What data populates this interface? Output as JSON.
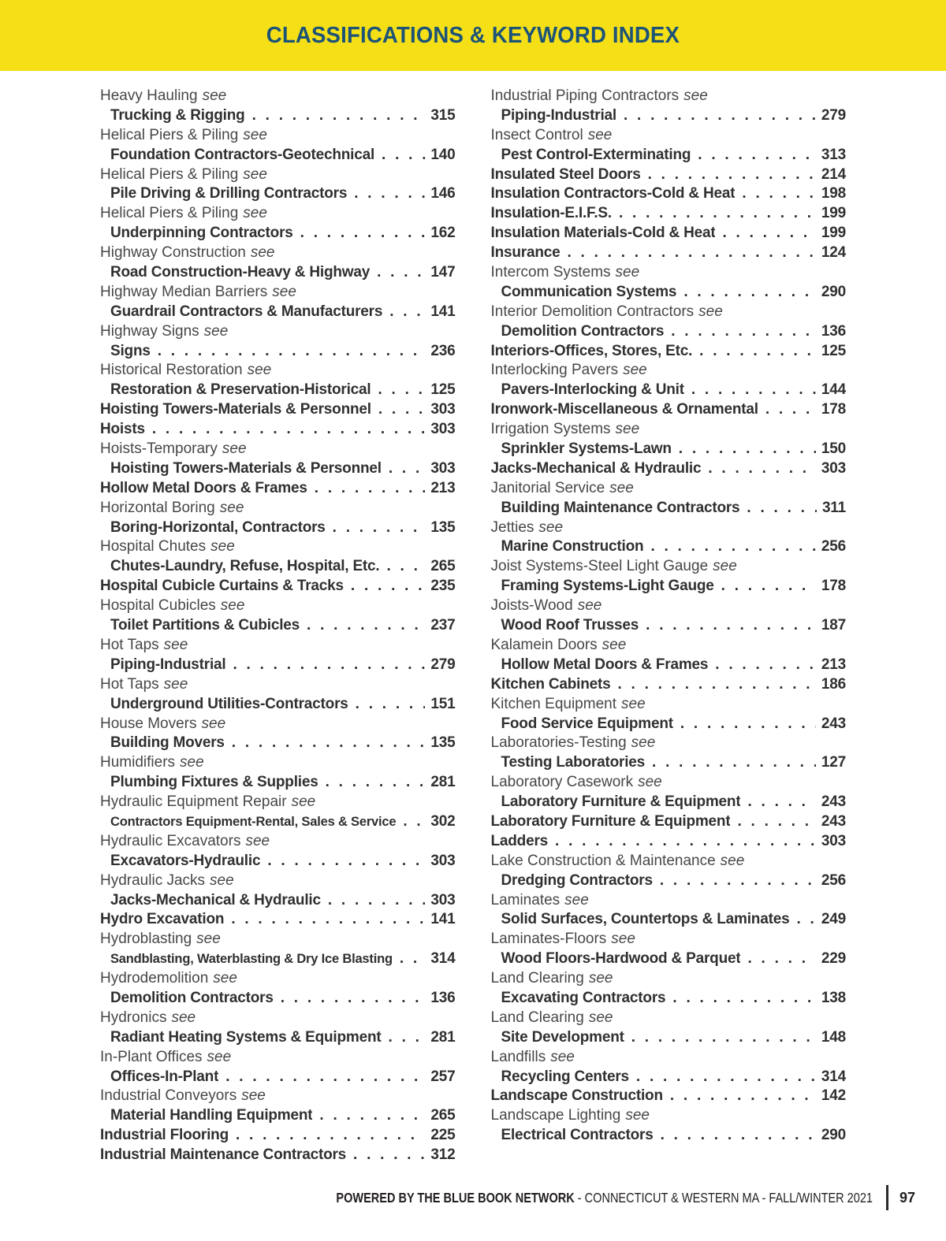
{
  "header": {
    "title": "CLASSIFICATIONS & KEYWORD INDEX",
    "banner_bg": "#F5E017",
    "title_color": "#1C5377"
  },
  "see_word": "see",
  "columns": {
    "left": [
      {
        "t": "see",
        "label": "Heavy Hauling"
      },
      {
        "t": "ref",
        "label": "Trucking & Rigging",
        "page": "315",
        "indent": true
      },
      {
        "t": "see",
        "label": "Helical Piers & Piling"
      },
      {
        "t": "ref",
        "label": "Foundation Contractors-Geotechnical",
        "page": "140",
        "indent": true
      },
      {
        "t": "see",
        "label": "Helical Piers & Piling"
      },
      {
        "t": "ref",
        "label": "Pile Driving & Drilling Contractors",
        "page": "146",
        "indent": true
      },
      {
        "t": "see",
        "label": "Helical Piers & Piling"
      },
      {
        "t": "ref",
        "label": "Underpinning Contractors",
        "page": "162",
        "indent": true
      },
      {
        "t": "see",
        "label": "Highway Construction"
      },
      {
        "t": "ref",
        "label": "Road Construction-Heavy & Highway",
        "page": "147",
        "indent": true
      },
      {
        "t": "see",
        "label": "Highway Median Barriers"
      },
      {
        "t": "ref",
        "label": "Guardrail Contractors & Manufacturers",
        "page": "141",
        "indent": true
      },
      {
        "t": "see",
        "label": "Highway Signs"
      },
      {
        "t": "ref",
        "label": "Signs",
        "page": "236",
        "indent": true
      },
      {
        "t": "see",
        "label": "Historical Restoration"
      },
      {
        "t": "ref",
        "label": "Restoration & Preservation-Historical",
        "page": "125",
        "indent": true
      },
      {
        "t": "ref",
        "label": "Hoisting Towers-Materials & Personnel",
        "page": "303",
        "indent": false
      },
      {
        "t": "ref",
        "label": "Hoists",
        "page": "303",
        "indent": false
      },
      {
        "t": "see",
        "label": "Hoists-Temporary"
      },
      {
        "t": "ref",
        "label": "Hoisting Towers-Materials & Personnel",
        "page": "303",
        "indent": true
      },
      {
        "t": "ref",
        "label": "Hollow Metal Doors & Frames",
        "page": "213",
        "indent": false
      },
      {
        "t": "see",
        "label": "Horizontal Boring"
      },
      {
        "t": "ref",
        "label": "Boring-Horizontal, Contractors",
        "page": "135",
        "indent": true
      },
      {
        "t": "see",
        "label": "Hospital Chutes"
      },
      {
        "t": "ref",
        "label": "Chutes-Laundry, Refuse, Hospital, Etc.",
        "page": "265",
        "indent": true
      },
      {
        "t": "ref",
        "label": "Hospital Cubicle Curtains & Tracks",
        "page": "235",
        "indent": false
      },
      {
        "t": "see",
        "label": "Hospital Cubicles"
      },
      {
        "t": "ref",
        "label": "Toilet Partitions & Cubicles",
        "page": "237",
        "indent": true
      },
      {
        "t": "see",
        "label": "Hot Taps"
      },
      {
        "t": "ref",
        "label": "Piping-Industrial",
        "page": "279",
        "indent": true
      },
      {
        "t": "see",
        "label": "Hot Taps"
      },
      {
        "t": "ref",
        "label": "Underground Utilities-Contractors",
        "page": "151",
        "indent": true
      },
      {
        "t": "see",
        "label": "House Movers"
      },
      {
        "t": "ref",
        "label": "Building Movers",
        "page": "135",
        "indent": true
      },
      {
        "t": "see",
        "label": "Humidifiers"
      },
      {
        "t": "ref",
        "label": "Plumbing Fixtures & Supplies",
        "page": "281",
        "indent": true
      },
      {
        "t": "see",
        "label": "Hydraulic Equipment Repair"
      },
      {
        "t": "ref",
        "label": "Contractors Equipment-Rental, Sales & Service",
        "page": "302",
        "indent": true,
        "small": true
      },
      {
        "t": "see",
        "label": "Hydraulic Excavators"
      },
      {
        "t": "ref",
        "label": "Excavators-Hydraulic",
        "page": "303",
        "indent": true
      },
      {
        "t": "see",
        "label": "Hydraulic Jacks"
      },
      {
        "t": "ref",
        "label": "Jacks-Mechanical & Hydraulic",
        "page": "303",
        "indent": true
      },
      {
        "t": "ref",
        "label": "Hydro Excavation",
        "page": "141",
        "indent": false
      },
      {
        "t": "see",
        "label": "Hydroblasting"
      },
      {
        "t": "ref",
        "label": "Sandblasting, Waterblasting & Dry Ice Blasting",
        "page": "314",
        "indent": true,
        "small": true
      },
      {
        "t": "see",
        "label": "Hydrodemolition"
      },
      {
        "t": "ref",
        "label": "Demolition Contractors",
        "page": "136",
        "indent": true
      },
      {
        "t": "see",
        "label": "Hydronics"
      },
      {
        "t": "ref",
        "label": "Radiant Heating Systems & Equipment",
        "page": "281",
        "indent": true
      },
      {
        "t": "see",
        "label": "In-Plant Offices"
      },
      {
        "t": "ref",
        "label": "Offices-In-Plant",
        "page": "257",
        "indent": true
      },
      {
        "t": "see",
        "label": "Industrial Conveyors"
      },
      {
        "t": "ref",
        "label": "Material Handling Equipment",
        "page": "265",
        "indent": true
      },
      {
        "t": "ref",
        "label": "Industrial Flooring",
        "page": "225",
        "indent": false
      },
      {
        "t": "ref",
        "label": "Industrial Maintenance Contractors",
        "page": "312",
        "indent": false
      }
    ],
    "right": [
      {
        "t": "see",
        "label": "Industrial Piping Contractors"
      },
      {
        "t": "ref",
        "label": "Piping-Industrial",
        "page": "279",
        "indent": true
      },
      {
        "t": "see",
        "label": "Insect Control"
      },
      {
        "t": "ref",
        "label": "Pest Control-Exterminating",
        "page": "313",
        "indent": true
      },
      {
        "t": "ref",
        "label": "Insulated Steel Doors",
        "page": "214",
        "indent": false
      },
      {
        "t": "ref",
        "label": "Insulation Contractors-Cold & Heat",
        "page": "198",
        "indent": false
      },
      {
        "t": "ref",
        "label": "Insulation-E.I.F.S.",
        "page": "199",
        "indent": false
      },
      {
        "t": "ref",
        "label": "Insulation Materials-Cold & Heat",
        "page": "199",
        "indent": false
      },
      {
        "t": "ref",
        "label": "Insurance",
        "page": "124",
        "indent": false
      },
      {
        "t": "see",
        "label": "Intercom Systems"
      },
      {
        "t": "ref",
        "label": "Communication Systems",
        "page": "290",
        "indent": true
      },
      {
        "t": "see",
        "label": "Interior Demolition Contractors"
      },
      {
        "t": "ref",
        "label": "Demolition Contractors",
        "page": "136",
        "indent": true
      },
      {
        "t": "ref",
        "label": "Interiors-Offices, Stores, Etc.",
        "page": "125",
        "indent": false
      },
      {
        "t": "see",
        "label": "Interlocking Pavers"
      },
      {
        "t": "ref",
        "label": "Pavers-Interlocking & Unit",
        "page": "144",
        "indent": true
      },
      {
        "t": "ref",
        "label": "Ironwork-Miscellaneous & Ornamental",
        "page": "178",
        "indent": false
      },
      {
        "t": "see",
        "label": "Irrigation Systems"
      },
      {
        "t": "ref",
        "label": "Sprinkler Systems-Lawn",
        "page": "150",
        "indent": true
      },
      {
        "t": "ref",
        "label": "Jacks-Mechanical & Hydraulic",
        "page": "303",
        "indent": false
      },
      {
        "t": "see",
        "label": "Janitorial Service"
      },
      {
        "t": "ref",
        "label": "Building Maintenance Contractors",
        "page": "311",
        "indent": true
      },
      {
        "t": "see",
        "label": "Jetties"
      },
      {
        "t": "ref",
        "label": "Marine Construction",
        "page": "256",
        "indent": true
      },
      {
        "t": "see",
        "label": "Joist Systems-Steel Light Gauge"
      },
      {
        "t": "ref",
        "label": "Framing Systems-Light Gauge",
        "page": "178",
        "indent": true
      },
      {
        "t": "see",
        "label": "Joists-Wood"
      },
      {
        "t": "ref",
        "label": "Wood Roof Trusses",
        "page": "187",
        "indent": true
      },
      {
        "t": "see",
        "label": "Kalamein Doors"
      },
      {
        "t": "ref",
        "label": "Hollow Metal Doors & Frames",
        "page": "213",
        "indent": true
      },
      {
        "t": "ref",
        "label": "Kitchen Cabinets",
        "page": "186",
        "indent": false
      },
      {
        "t": "see",
        "label": "Kitchen Equipment"
      },
      {
        "t": "ref",
        "label": "Food Service Equipment",
        "page": "243",
        "indent": true
      },
      {
        "t": "see",
        "label": "Laboratories-Testing"
      },
      {
        "t": "ref",
        "label": "Testing Laboratories",
        "page": "127",
        "indent": true
      },
      {
        "t": "see",
        "label": "Laboratory Casework"
      },
      {
        "t": "ref",
        "label": "Laboratory Furniture & Equipment",
        "page": "243",
        "indent": true
      },
      {
        "t": "ref",
        "label": "Laboratory Furniture & Equipment",
        "page": "243",
        "indent": false
      },
      {
        "t": "ref",
        "label": "Ladders",
        "page": "303",
        "indent": false
      },
      {
        "t": "see",
        "label": "Lake Construction & Maintenance"
      },
      {
        "t": "ref",
        "label": "Dredging Contractors",
        "page": "256",
        "indent": true
      },
      {
        "t": "see",
        "label": "Laminates"
      },
      {
        "t": "ref",
        "label": "Solid Surfaces, Countertops & Laminates",
        "page": "249",
        "indent": true
      },
      {
        "t": "see",
        "label": "Laminates-Floors"
      },
      {
        "t": "ref",
        "label": "Wood Floors-Hardwood & Parquet",
        "page": "229",
        "indent": true
      },
      {
        "t": "see",
        "label": "Land Clearing"
      },
      {
        "t": "ref",
        "label": "Excavating Contractors",
        "page": "138",
        "indent": true
      },
      {
        "t": "see",
        "label": "Land Clearing"
      },
      {
        "t": "ref",
        "label": "Site Development",
        "page": "148",
        "indent": true
      },
      {
        "t": "see",
        "label": "Landfills"
      },
      {
        "t": "ref",
        "label": "Recycling Centers",
        "page": "314",
        "indent": true
      },
      {
        "t": "ref",
        "label": "Landscape Construction",
        "page": "142",
        "indent": false
      },
      {
        "t": "see",
        "label": "Landscape Lighting"
      },
      {
        "t": "ref",
        "label": "Electrical Contractors",
        "page": "290",
        "indent": true
      }
    ]
  },
  "footer": {
    "powered_bold": "POWERED BY THE BLUE BOOK NETWORK",
    "powered_rest": " - CONNECTICUT & WESTERN MA - FALL/WINTER 2021",
    "page_number": "97"
  }
}
